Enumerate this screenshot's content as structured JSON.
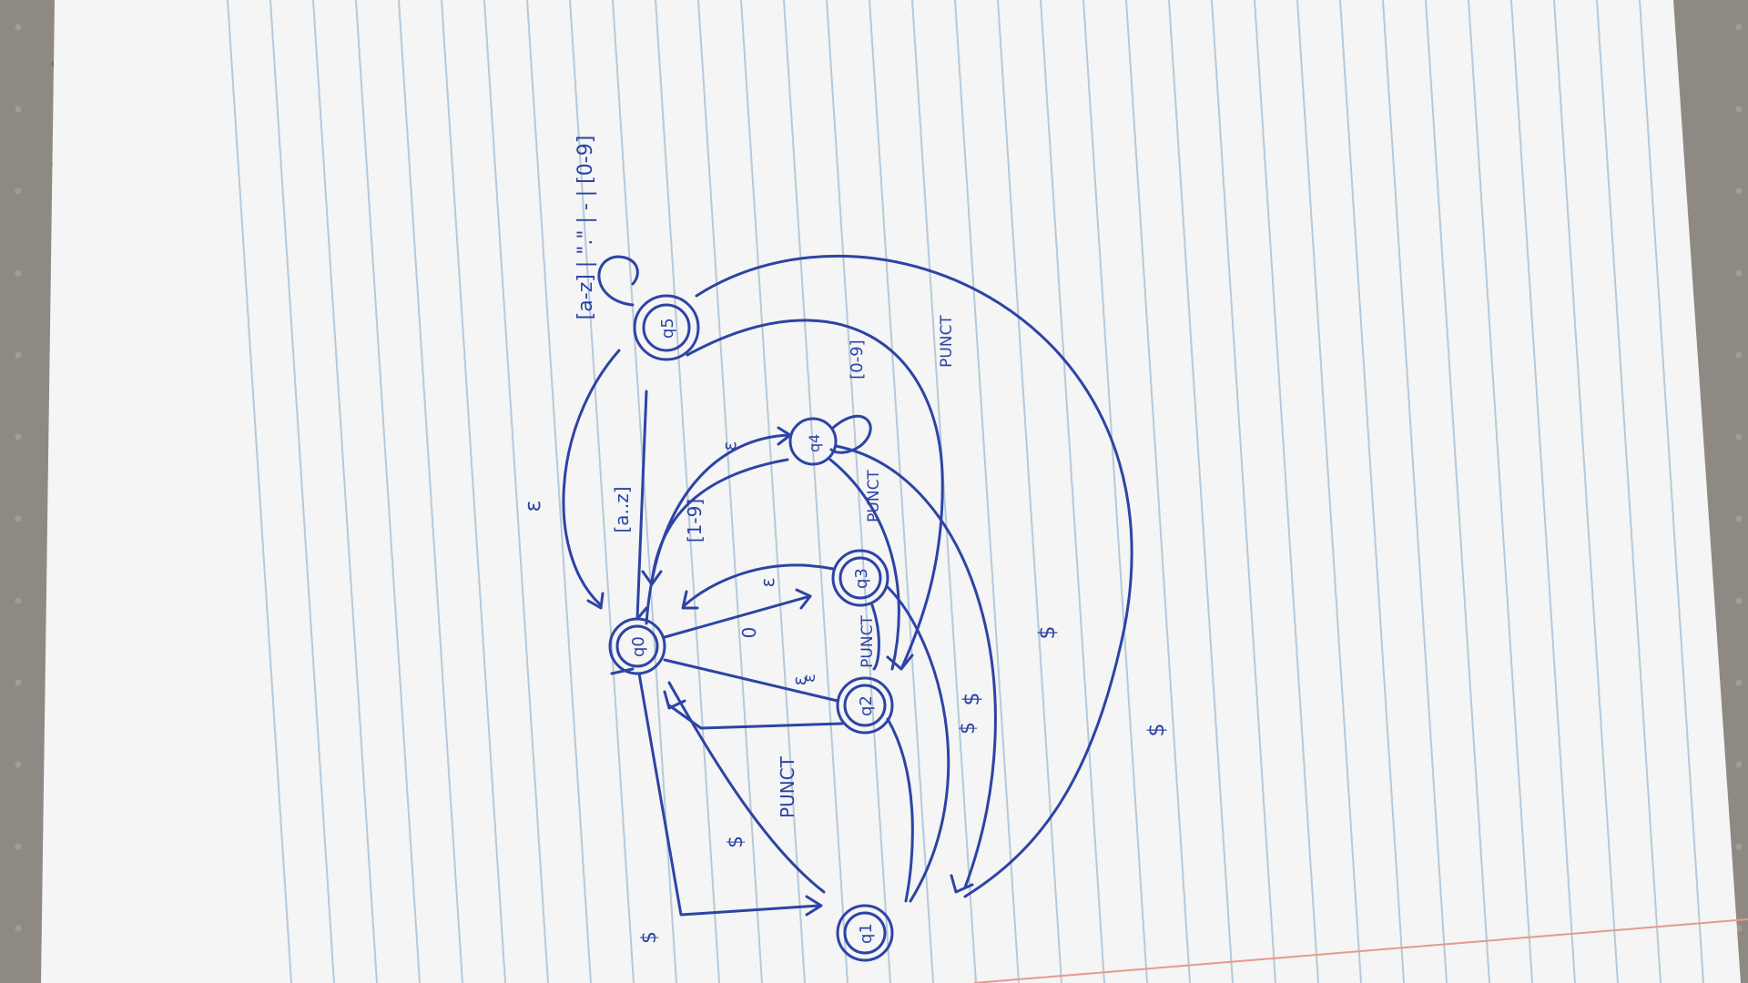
{
  "colors": {
    "paper": "#f4f5f4",
    "rule_line": "#b7c9d9",
    "margin_line": "#e59a8d",
    "ink": "#2d43a5",
    "background": "#8f8983"
  },
  "states": {
    "q0": "q0",
    "q1": "q1",
    "q2": "q2",
    "q3": "q3",
    "q4": "q4",
    "q5": "q5"
  },
  "labels": {
    "q5_loop": "[a-z] | \".\" | - | [0-9]",
    "q0_to_q5": "[a..z]",
    "q5_to_q0": "ε",
    "q0_to_q4": "[1-9]",
    "q4_to_q0": "ε",
    "q4_loop": "[0-9]",
    "q0_to_q3": "0",
    "q3_to_q0": "ε",
    "q0_to_q2": "ε",
    "q2_to_q0": "PUNCT",
    "q0_to_q1": "$",
    "q3_punct": "PUNCT",
    "q4_punct": "PUNCT",
    "q5_punct": "PUNCT",
    "q2_dollar": "$",
    "q3_dollar": "$",
    "q4_dollar": "$",
    "q5_dollar": "$",
    "q0_dollar_top": "$",
    "q0_bottom_label": "ε"
  }
}
